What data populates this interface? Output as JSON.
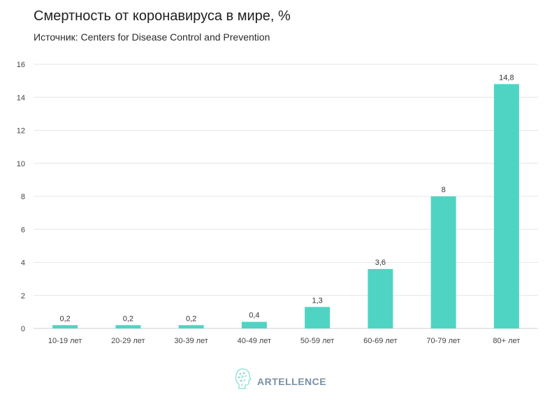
{
  "header": {
    "title": "Смертность от коронавируса в мире, %",
    "subtitle": "Источник: Centers for Disease Control and Prevention"
  },
  "brand": {
    "logo_icon": "head-profile-icon",
    "name": "ARTELLENCE"
  },
  "colors": {
    "bar": "#4fd4c3",
    "grid": "#e6e6e6",
    "logo": "#7a8fa5",
    "logo_accent": "#7fe0d2"
  },
  "chart_data": {
    "type": "bar",
    "title": "Смертность от коронавируса в мире, %",
    "subtitle": "Источник: Centers for Disease Control and Prevention",
    "xlabel": "",
    "ylabel": "",
    "categories": [
      "10-19 лет",
      "20-29 лет",
      "30-39 лет",
      "40-49 лет",
      "50-59 лет",
      "60-69 лет",
      "70-79 лет",
      "80+ лет"
    ],
    "values": [
      0.2,
      0.2,
      0.2,
      0.4,
      1.3,
      3.6,
      8,
      14.8
    ],
    "value_labels": [
      "0,2",
      "0,2",
      "0,2",
      "0,4",
      "1,3",
      "3,6",
      "8",
      "14,8"
    ],
    "ylim": [
      0,
      16
    ],
    "yticks": [
      0,
      2,
      4,
      6,
      8,
      10,
      12,
      14,
      16
    ],
    "grid": true,
    "legend": "none"
  }
}
